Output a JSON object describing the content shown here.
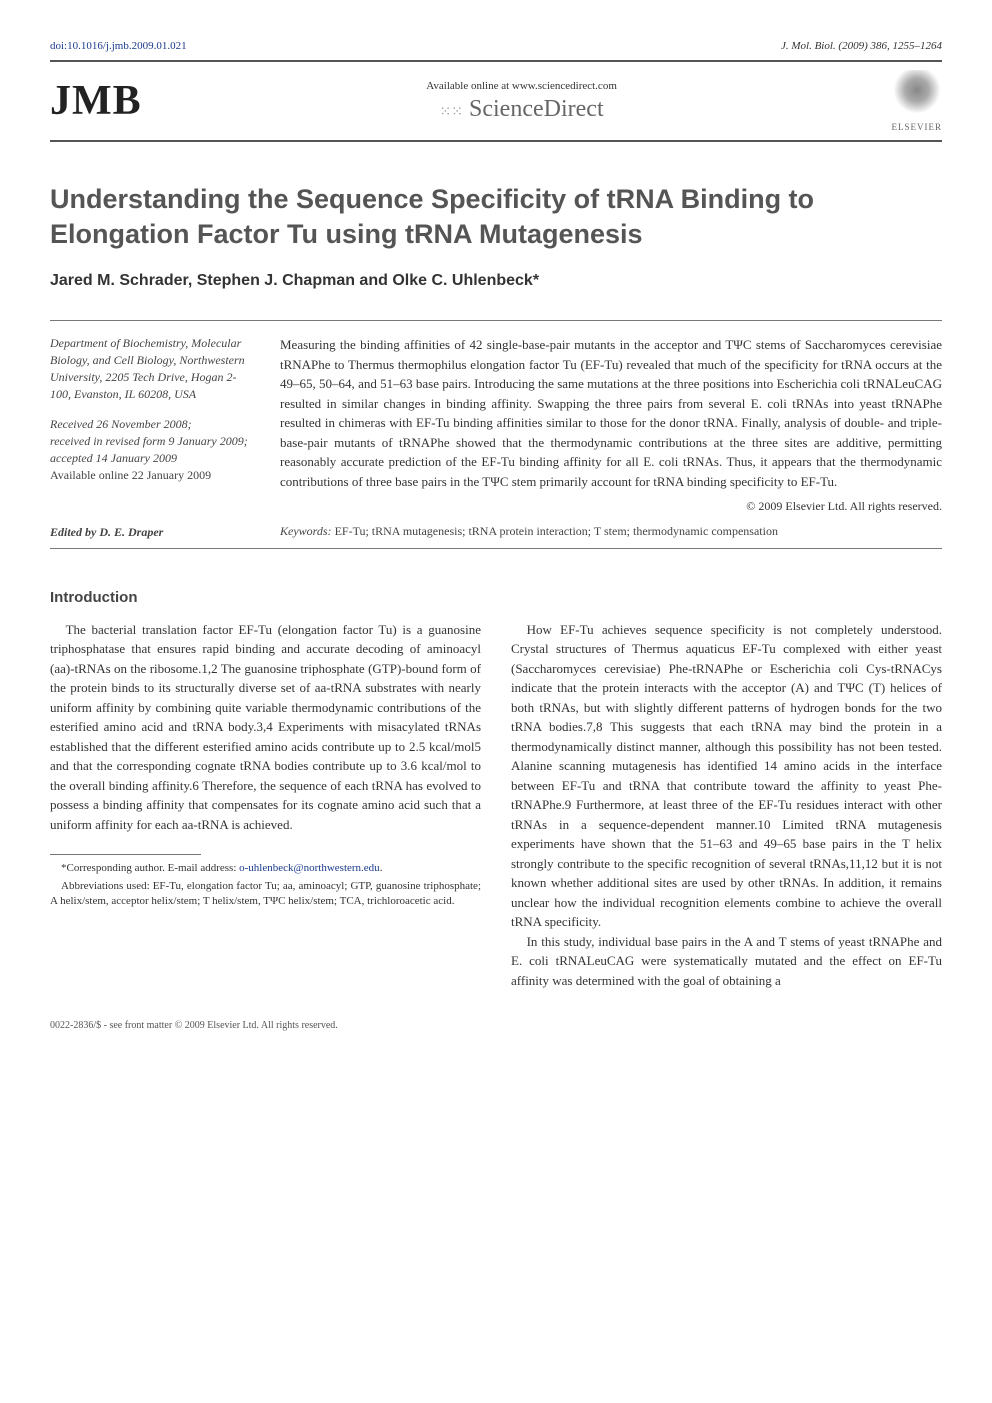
{
  "header": {
    "doi": "doi:10.1016/j.jmb.2009.01.021",
    "journal_ref": "J. Mol. Biol. (2009) 386, 1255–1264",
    "jmb_logo": "JMB",
    "available_online": "Available online at www.sciencedirect.com",
    "sciencedirect": "ScienceDirect",
    "elsevier": "ELSEVIER"
  },
  "title": "Understanding the Sequence Specificity of tRNA Binding to Elongation Factor Tu using tRNA Mutagenesis",
  "authors": "Jared M. Schrader, Stephen J. Chapman and Olke C. Uhlenbeck*",
  "affiliation": "Department of Biochemistry, Molecular Biology, and Cell Biology, Northwestern University, 2205 Tech Drive, Hogan 2-100, Evanston, IL 60208, USA",
  "dates": {
    "received": "Received 26 November 2008;",
    "revised": "received in revised form 9 January 2009;",
    "accepted": "accepted 14 January 2009",
    "available": "Available online 22 January 2009"
  },
  "abstract": "Measuring the binding affinities of 42 single-base-pair mutants in the acceptor and TΨC stems of Saccharomyces cerevisiae tRNAPhe to Thermus thermophilus elongation factor Tu (EF-Tu) revealed that much of the specificity for tRNA occurs at the 49–65, 50–64, and 51–63 base pairs. Introducing the same mutations at the three positions into Escherichia coli tRNALeuCAG resulted in similar changes in binding affinity. Swapping the three pairs from several E. coli tRNAs into yeast tRNAPhe resulted in chimeras with EF-Tu binding affinities similar to those for the donor tRNA. Finally, analysis of double- and triple-base-pair mutants of tRNAPhe showed that the thermodynamic contributions at the three sites are additive, permitting reasonably accurate prediction of the EF-Tu binding affinity for all E. coli tRNAs. Thus, it appears that the thermodynamic contributions of three base pairs in the TΨC stem primarily account for tRNA binding specificity to EF-Tu.",
  "copyright": "© 2009 Elsevier Ltd. All rights reserved.",
  "keywords_label": "Keywords:",
  "keywords": " EF-Tu; tRNA mutagenesis; tRNA protein interaction; T stem; thermodynamic compensation",
  "edited_by": "Edited by D. E. Draper",
  "intro_heading": "Introduction",
  "intro_left": "The bacterial translation factor EF-Tu (elongation factor Tu) is a guanosine triphosphatase that ensures rapid binding and accurate decoding of aminoacyl (aa)-tRNAs on the ribosome.1,2 The guanosine triphosphate (GTP)-bound form of the protein binds to its structurally diverse set of aa-tRNA substrates with nearly uniform affinity by combining quite variable thermodynamic contributions of the esterified amino acid and tRNA body.3,4 Experiments with misacylated tRNAs established that the different esterified amino acids contribute up to 2.5 kcal/mol5 and that the corresponding cognate tRNA bodies contribute up to 3.6 kcal/mol to the overall binding affinity.6 Therefore, the sequence of each tRNA has evolved to possess a binding affinity that compensates for its cognate amino acid such that a uniform affinity for each aa-tRNA is achieved.",
  "intro_right_p1": "How EF-Tu achieves sequence specificity is not completely understood. Crystal structures of Thermus aquaticus EF-Tu complexed with either yeast (Saccharomyces cerevisiae) Phe-tRNAPhe or Escherichia coli Cys-tRNACys indicate that the protein interacts with the acceptor (A) and TΨC (T) helices of both tRNAs, but with slightly different patterns of hydrogen bonds for the two tRNA bodies.7,8 This suggests that each tRNA may bind the protein in a thermodynamically distinct manner, although this possibility has not been tested. Alanine scanning mutagenesis has identified 14 amino acids in the interface between EF-Tu and tRNA that contribute toward the affinity to yeast Phe-tRNAPhe.9 Furthermore, at least three of the EF-Tu residues interact with other tRNAs in a sequence-dependent manner.10 Limited tRNA mutagenesis experiments have shown that the 51–63 and 49–65 base pairs in the T helix strongly contribute to the specific recognition of several tRNAs,11,12 but it is not known whether additional sites are used by other tRNAs. In addition, it remains unclear how the individual recognition elements combine to achieve the overall tRNA specificity.",
  "intro_right_p2": "In this study, individual base pairs in the A and T stems of yeast tRNAPhe and E. coli tRNALeuCAG were systematically mutated and the effect on EF-Tu affinity was determined with the goal of obtaining a",
  "footnotes": {
    "corresponding_label": "*Corresponding author.",
    "email_label": " E-mail address: ",
    "email": "o-uhlenbeck@northwestern.edu",
    "abbrev": "Abbreviations used: EF-Tu, elongation factor Tu; aa, aminoacyl; GTP, guanosine triphosphate; A helix/stem, acceptor helix/stem; T helix/stem, TΨC helix/stem; TCA, trichloroacetic acid."
  },
  "footer": "0022-2836/$ - see front matter © 2009 Elsevier Ltd. All rights reserved."
}
